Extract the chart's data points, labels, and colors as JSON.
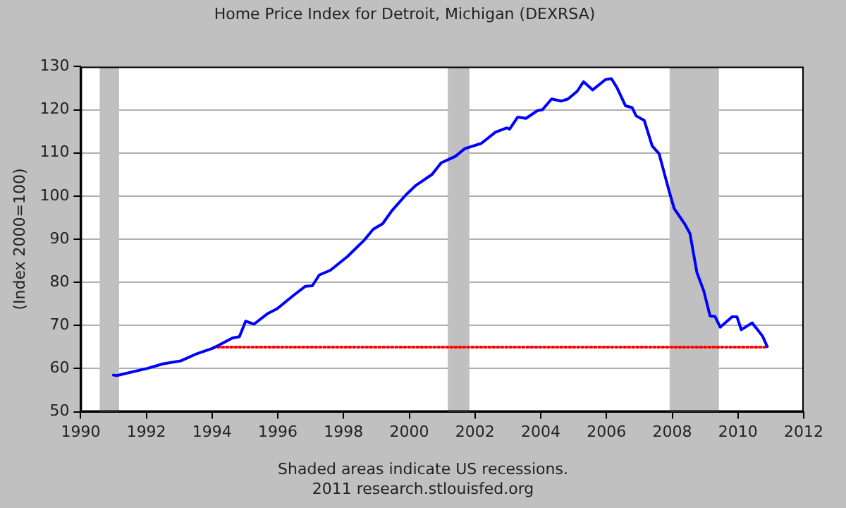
{
  "chart_data": {
    "type": "line",
    "title": "Home Price Index for Detroit, Michigan (DEXRSA)",
    "ylabel": "(Index 2000=100)",
    "xlim": [
      1990,
      2012
    ],
    "xticks": [
      1990,
      1992,
      1994,
      1996,
      1998,
      2000,
      2002,
      2004,
      2006,
      2008,
      2010,
      2012
    ],
    "ylim": [
      50,
      130
    ],
    "yticks": [
      50,
      60,
      70,
      80,
      90,
      100,
      110,
      120,
      130
    ],
    "grid": "y",
    "marker": "none",
    "bands": [
      {
        "axis": "x",
        "from": 1990.58,
        "to": 1991.17,
        "color": "#c0c0c0"
      },
      {
        "axis": "x",
        "from": 2001.17,
        "to": 2001.83,
        "color": "#c0c0c0"
      },
      {
        "axis": "x",
        "from": 2007.92,
        "to": 2009.42,
        "color": "#c0c0c0"
      }
    ],
    "annotations": [
      "Shaded areas indicate US recessions.",
      "2011 research.stlouisfed.org"
    ],
    "series": [
      {
        "color": "#0000ff",
        "line_style": "solid",
        "x": [
          1991.0,
          1991.1,
          1992.05,
          1992.5,
          1993.05,
          1993.55,
          1994.05,
          1994.62,
          1994.83,
          1995.02,
          1995.27,
          1995.7,
          1995.98,
          1996.48,
          1996.84,
          1997.05,
          1997.26,
          1997.6,
          1998.12,
          1998.62,
          1998.9,
          1999.19,
          1999.47,
          1999.9,
          2000.19,
          2000.69,
          2000.97,
          2001.4,
          2001.69,
          2002.19,
          2002.62,
          2002.97,
          2003.05,
          2003.3,
          2003.55,
          2003.9,
          2004.05,
          2004.33,
          2004.62,
          2004.83,
          2005.11,
          2005.3,
          2005.58,
          2005.97,
          2006.15,
          2006.32,
          2006.58,
          2006.78,
          2006.9,
          2007.15,
          2007.39,
          2007.6,
          2007.9,
          2008.06,
          2008.39,
          2008.54,
          2008.75,
          2008.96,
          2009.15,
          2009.3,
          2009.46,
          2009.82,
          2009.97,
          2010.1,
          2010.43,
          2010.6,
          2010.75,
          2010.89
        ],
        "values": [
          58.5,
          58.4,
          60.1,
          61.1,
          61.8,
          63.5,
          64.8,
          67.1,
          67.4,
          71.0,
          70.3,
          72.8,
          73.9,
          77.0,
          79.1,
          79.2,
          81.7,
          82.8,
          86.0,
          89.7,
          92.3,
          93.6,
          96.6,
          100.3,
          102.4,
          105.0,
          107.7,
          109.2,
          111.0,
          112.2,
          114.8,
          115.8,
          115.5,
          118.3,
          118.0,
          119.8,
          120.0,
          122.5,
          122.0,
          122.5,
          124.3,
          126.5,
          124.6,
          127.0,
          127.2,
          125.1,
          120.9,
          120.5,
          118.6,
          117.5,
          111.6,
          109.8,
          101.3,
          97.1,
          93.4,
          91.3,
          82.3,
          78.0,
          72.2,
          72.1,
          69.6,
          72.0,
          72.0,
          69.0,
          70.6,
          69.0,
          67.5,
          65.1
        ]
      },
      {
        "color": "#ff0000",
        "line_style": "dotted",
        "x": [
          1994.05,
          2010.89
        ],
        "values": [
          65,
          65
        ]
      }
    ]
  }
}
